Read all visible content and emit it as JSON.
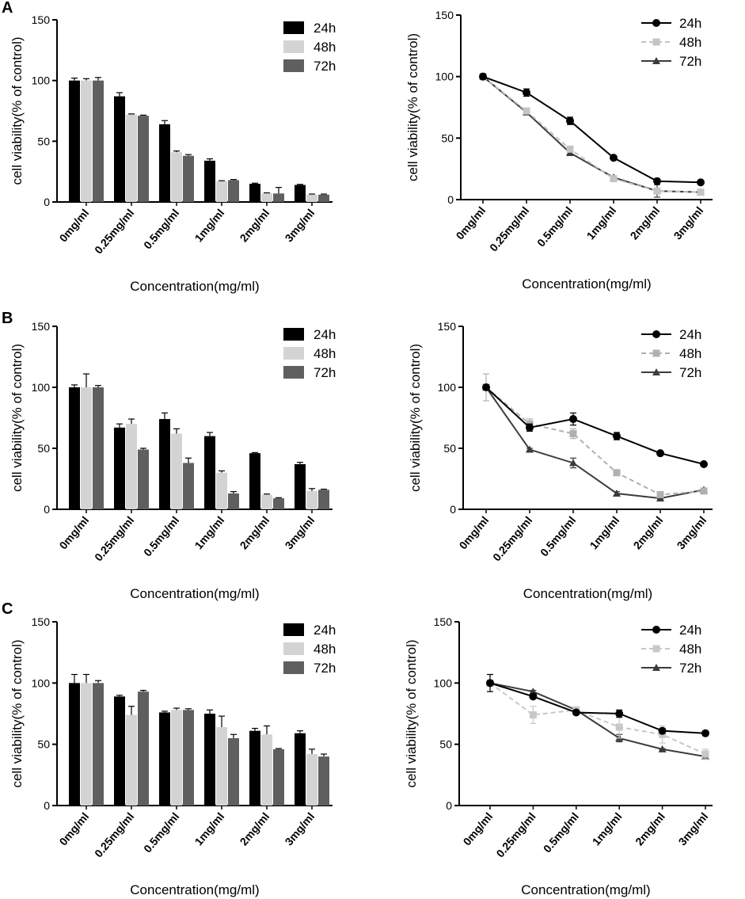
{
  "figure": {
    "panels": [
      {
        "letter": "A"
      },
      {
        "letter": "B"
      },
      {
        "letter": "C"
      }
    ]
  },
  "chart_data": [
    {
      "id": "A-bar",
      "type": "bar",
      "panel": "A",
      "categories": [
        "0mg/ml",
        "0.25mg/ml",
        "0.5mg/ml",
        "1mg/ml",
        "2mg/ml",
        "3mg/ml"
      ],
      "xlabel": "Concentration(mg/ml)",
      "ylabel": "cell viability(% of control)",
      "ylim": [
        0,
        150
      ],
      "yticks": [
        "0",
        "50",
        "100",
        "150"
      ],
      "legend_position": "top-right",
      "series": [
        {
          "name": "24h",
          "color": "#000000",
          "values": [
            100,
            87,
            64,
            34,
            15,
            14
          ],
          "errors": [
            2,
            3,
            3,
            1.5,
            0.5,
            0.5
          ]
        },
        {
          "name": "48h",
          "color": "#d3d3d3",
          "values": [
            100,
            72,
            41,
            17,
            7,
            6
          ],
          "errors": [
            1.5,
            0.5,
            1,
            0.5,
            0.5,
            0.5
          ]
        },
        {
          "name": "72h",
          "color": "#5f5f5f",
          "values": [
            100,
            71,
            38,
            18,
            7,
            6
          ],
          "errors": [
            2.5,
            0.5,
            1,
            0.5,
            5,
            0.5
          ]
        }
      ]
    },
    {
      "id": "A-line",
      "type": "line",
      "panel": "A",
      "categories": [
        "0mg/ml",
        "0.25mg/ml",
        "0.5mg/ml",
        "1mg/ml",
        "2mg/ml",
        "3mg/ml"
      ],
      "xlabel": "Concentration(mg/ml)",
      "ylabel": "cell viability(% of control)",
      "ylim": [
        0,
        150
      ],
      "yticks": [
        "0",
        "50",
        "100",
        "150"
      ],
      "legend_position": "top-right",
      "series": [
        {
          "name": "24h",
          "color": "#000000",
          "marker": "circle",
          "dash": "solid",
          "values": [
            100,
            87,
            64,
            34,
            15,
            14
          ],
          "errors": [
            2,
            3,
            3,
            1.5,
            0.5,
            0.5
          ]
        },
        {
          "name": "48h",
          "color": "#c4c4c4",
          "marker": "square",
          "dash": "dashed",
          "values": [
            100,
            72,
            41,
            17,
            7,
            6
          ],
          "errors": [
            1.5,
            0.5,
            1,
            0.5,
            0.5,
            0.5
          ]
        },
        {
          "name": "72h",
          "color": "#3c3c3c",
          "marker": "triangle",
          "dash": "solid",
          "values": [
            100,
            71,
            38,
            18,
            7,
            6
          ],
          "errors": [
            2.5,
            0.5,
            1,
            0.5,
            5,
            0.5
          ]
        }
      ]
    },
    {
      "id": "B-bar",
      "type": "bar",
      "panel": "B",
      "categories": [
        "0mg/ml",
        "0.25mg/ml",
        "0.5mg/ml",
        "1mg/ml",
        "2mg/ml",
        "3mg/ml"
      ],
      "xlabel": "Concentration(mg/ml)",
      "ylabel": "cell viability(% of control)",
      "ylim": [
        0,
        150
      ],
      "yticks": [
        "0",
        "50",
        "100",
        "150"
      ],
      "legend_position": "top-right",
      "series": [
        {
          "name": "24h",
          "color": "#000000",
          "values": [
            100,
            67,
            74,
            60,
            46,
            37
          ],
          "errors": [
            2,
            3,
            5,
            3,
            0.5,
            1.5
          ]
        },
        {
          "name": "48h",
          "color": "#d3d3d3",
          "values": [
            100,
            70,
            62,
            30,
            12,
            15
          ],
          "errors": [
            11,
            4,
            4,
            1.5,
            0.5,
            2
          ]
        },
        {
          "name": "72h",
          "color": "#5f5f5f",
          "values": [
            100,
            49,
            38,
            13,
            9,
            16
          ],
          "errors": [
            1.5,
            1,
            4,
            1.5,
            0.5,
            0.5
          ]
        }
      ]
    },
    {
      "id": "B-line",
      "type": "line",
      "panel": "B",
      "categories": [
        "0mg/ml",
        "0.25mg/ml",
        "0.5mg/ml",
        "1mg/ml",
        "2mg/ml",
        "3mg/ml"
      ],
      "xlabel": "Concentration(mg/ml)",
      "ylabel": "cell viability(% of control)",
      "ylim": [
        0,
        150
      ],
      "yticks": [
        "0",
        "50",
        "100",
        "150"
      ],
      "legend_position": "top-right",
      "series": [
        {
          "name": "24h",
          "color": "#000000",
          "marker": "circle",
          "dash": "solid",
          "values": [
            100,
            67,
            74,
            60,
            46,
            37
          ],
          "errors": [
            2,
            3,
            5,
            3,
            0.5,
            1.5
          ]
        },
        {
          "name": "48h",
          "color": "#b0b0b0",
          "marker": "square",
          "dash": "dashed",
          "values": [
            100,
            70,
            62,
            30,
            12,
            15
          ],
          "errors": [
            11,
            4,
            4,
            1.5,
            0.5,
            2
          ]
        },
        {
          "name": "72h",
          "color": "#3c3c3c",
          "marker": "triangle",
          "dash": "solid",
          "values": [
            100,
            49,
            38,
            13,
            9,
            16
          ],
          "errors": [
            1.5,
            1,
            4,
            1.5,
            0.5,
            0.5
          ]
        }
      ]
    },
    {
      "id": "C-bar",
      "type": "bar",
      "panel": "C",
      "categories": [
        "0mg/ml",
        "0.25mg/ml",
        "0.5mg/ml",
        "1mg/ml",
        "2mg/ml",
        "3mg/ml"
      ],
      "xlabel": "Concentration(mg/ml)",
      "ylabel": "cell viability(% of control)",
      "ylim": [
        0,
        150
      ],
      "yticks": [
        "0",
        "50",
        "100",
        "150"
      ],
      "legend_position": "top-right",
      "series": [
        {
          "name": "24h",
          "color": "#000000",
          "values": [
            100,
            89,
            76,
            75,
            61,
            59
          ],
          "errors": [
            7,
            1,
            1,
            3,
            2,
            2
          ]
        },
        {
          "name": "48h",
          "color": "#d3d3d3",
          "values": [
            100,
            74,
            78,
            64,
            58,
            42
          ],
          "errors": [
            7,
            7,
            1.5,
            9,
            7,
            4
          ]
        },
        {
          "name": "72h",
          "color": "#5f5f5f",
          "values": [
            100,
            93,
            78,
            55,
            46,
            40
          ],
          "errors": [
            2,
            1,
            1,
            3,
            0.5,
            2
          ]
        }
      ]
    },
    {
      "id": "C-line",
      "type": "line",
      "panel": "C",
      "categories": [
        "0mg/ml",
        "0.25mg/ml",
        "0.5mg/ml",
        "1mg/ml",
        "2mg/ml",
        "3mg/ml"
      ],
      "xlabel": "Concentration(mg/ml)",
      "ylabel": "cell viability(% of control)",
      "ylim": [
        0,
        150
      ],
      "yticks": [
        "0",
        "50",
        "100",
        "150"
      ],
      "legend_position": "top-right",
      "series": [
        {
          "name": "24h",
          "color": "#000000",
          "marker": "circle",
          "dash": "solid",
          "values": [
            100,
            89,
            76,
            75,
            61,
            59
          ],
          "errors": [
            7,
            1,
            1,
            3,
            2,
            2
          ]
        },
        {
          "name": "48h",
          "color": "#c8c8c8",
          "marker": "square",
          "dash": "dashed",
          "values": [
            100,
            74,
            78,
            64,
            58,
            42
          ],
          "errors": [
            7,
            7,
            1.5,
            9,
            7,
            4
          ]
        },
        {
          "name": "72h",
          "color": "#3c3c3c",
          "marker": "triangle",
          "dash": "solid",
          "values": [
            100,
            93,
            78,
            55,
            46,
            40
          ],
          "errors": [
            2,
            1,
            1,
            3,
            0.5,
            2
          ]
        }
      ]
    }
  ]
}
